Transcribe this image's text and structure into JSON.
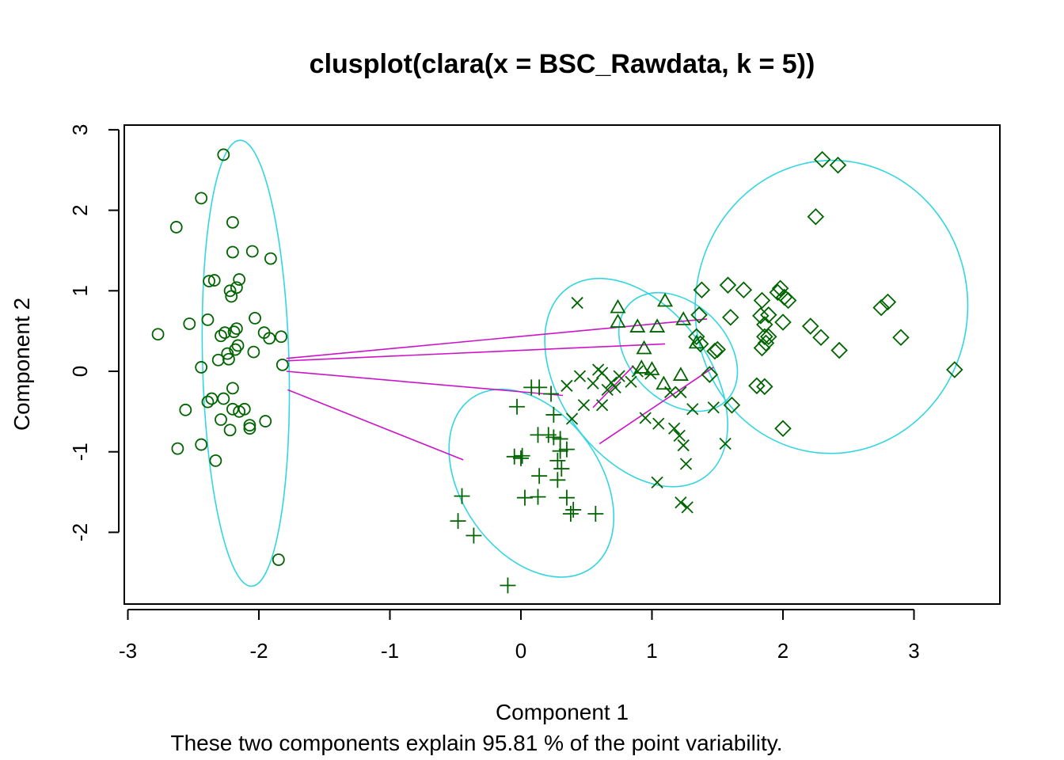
{
  "chart_data": {
    "type": "scatter",
    "title": "clusplot(clara(x = BSC_Rawdata, k = 5))",
    "xlabel": "Component 1",
    "ylabel": "Component 2",
    "subtitle": "These two components explain 95.81 % of the point variability.",
    "xlim": [
      -3,
      3.5
    ],
    "ylim": [
      -2.85,
      3
    ],
    "xticks": [
      "-3",
      "-2",
      "-1",
      "0",
      "1",
      "2",
      "3"
    ],
    "yticks": [
      "-2",
      "-1",
      "0",
      "1",
      "2",
      "3"
    ],
    "point_color": "#006400",
    "ellipse_color": "#33D6E0",
    "line_color": "#CC14C7",
    "clusters": [
      {
        "marker": "circle",
        "points": [
          [
            -2.27,
            2.69
          ],
          [
            -2.44,
            2.15
          ],
          [
            -2.63,
            1.79
          ],
          [
            -2.2,
            1.85
          ],
          [
            -2.2,
            1.48
          ],
          [
            -2.05,
            1.49
          ],
          [
            -1.91,
            1.4
          ],
          [
            -2.38,
            1.12
          ],
          [
            -2.34,
            1.13
          ],
          [
            -2.15,
            1.14
          ],
          [
            -2.22,
            1.0
          ],
          [
            -2.17,
            1.04
          ],
          [
            -2.21,
            0.93
          ],
          [
            -2.39,
            0.64
          ],
          [
            -2.53,
            0.59
          ],
          [
            -2.03,
            0.66
          ],
          [
            -2.77,
            0.46
          ],
          [
            -2.26,
            0.48
          ],
          [
            -2.19,
            0.49
          ],
          [
            -2.17,
            0.53
          ],
          [
            -2.29,
            0.44
          ],
          [
            -1.96,
            0.48
          ],
          [
            -1.92,
            0.41
          ],
          [
            -1.83,
            0.43
          ],
          [
            -2.16,
            0.32
          ],
          [
            -2.18,
            0.27
          ],
          [
            -2.24,
            0.22
          ],
          [
            -2.04,
            0.24
          ],
          [
            -2.23,
            0.15
          ],
          [
            -2.31,
            0.14
          ],
          [
            -2.44,
            0.05
          ],
          [
            -1.82,
            0.08
          ],
          [
            -2.2,
            -0.21
          ],
          [
            -2.36,
            -0.34
          ],
          [
            -2.39,
            -0.38
          ],
          [
            -2.27,
            -0.34
          ],
          [
            -2.2,
            -0.47
          ],
          [
            -2.15,
            -0.5
          ],
          [
            -2.11,
            -0.47
          ],
          [
            -2.56,
            -0.48
          ],
          [
            -2.29,
            -0.6
          ],
          [
            -1.95,
            -0.62
          ],
          [
            -2.07,
            -0.67
          ],
          [
            -2.07,
            -0.71
          ],
          [
            -2.22,
            -0.73
          ],
          [
            -2.44,
            -0.91
          ],
          [
            -2.62,
            -0.96
          ],
          [
            -2.33,
            -1.11
          ],
          [
            -1.85,
            -2.34
          ]
        ],
        "ellipse": {
          "cx": -2.1,
          "cy": 0.1,
          "rx": 0.33,
          "ry": 2.77,
          "angle_deg": -1.5
        }
      },
      {
        "marker": "plus",
        "points": [
          [
            0.08,
            -0.2
          ],
          [
            0.14,
            -0.2
          ],
          [
            0.23,
            -0.28
          ],
          [
            -0.03,
            -0.44
          ],
          [
            0.25,
            -0.54
          ],
          [
            0.13,
            -0.79
          ],
          [
            0.21,
            -0.79
          ],
          [
            0.25,
            -0.82
          ],
          [
            0.3,
            -0.84
          ],
          [
            0.35,
            -0.97
          ],
          [
            0.3,
            -0.99
          ],
          [
            -0.05,
            -1.06
          ],
          [
            0.01,
            -1.05
          ],
          [
            0.0,
            -1.08
          ],
          [
            0.28,
            -1.11
          ],
          [
            0.31,
            -1.21
          ],
          [
            0.14,
            -1.3
          ],
          [
            0.28,
            -1.35
          ],
          [
            -0.45,
            -1.55
          ],
          [
            0.03,
            -1.57
          ],
          [
            0.13,
            -1.56
          ],
          [
            0.35,
            -1.57
          ],
          [
            0.4,
            -1.72
          ],
          [
            0.38,
            -1.77
          ],
          [
            0.57,
            -1.77
          ],
          [
            -0.48,
            -1.86
          ],
          [
            -0.36,
            -2.04
          ],
          [
            -0.1,
            -2.66
          ]
        ],
        "ellipse": {
          "cx": 0.08,
          "cy": -1.39,
          "rx": 0.53,
          "ry": 1.29,
          "angle_deg": -35
        }
      },
      {
        "marker": "cross",
        "points": [
          [
            0.43,
            0.85
          ],
          [
            0.59,
            0.02
          ],
          [
            0.62,
            -0.02
          ],
          [
            0.45,
            -0.06
          ],
          [
            0.75,
            -0.06
          ],
          [
            0.35,
            -0.18
          ],
          [
            0.55,
            -0.15
          ],
          [
            0.69,
            -0.14
          ],
          [
            0.66,
            -0.23
          ],
          [
            0.72,
            -0.2
          ],
          [
            0.84,
            -0.13
          ],
          [
            0.89,
            0.0
          ],
          [
            0.99,
            -0.03
          ],
          [
            1.14,
            -0.26
          ],
          [
            1.22,
            -0.26
          ],
          [
            0.48,
            -0.42
          ],
          [
            0.62,
            -0.42
          ],
          [
            0.39,
            -0.59
          ],
          [
            0.95,
            -0.58
          ],
          [
            1.05,
            -0.65
          ],
          [
            1.17,
            -0.71
          ],
          [
            1.21,
            -0.8
          ],
          [
            1.24,
            -0.92
          ],
          [
            1.31,
            -0.47
          ],
          [
            1.47,
            -0.45
          ],
          [
            1.56,
            -0.9
          ],
          [
            1.26,
            -1.15
          ],
          [
            1.04,
            -1.38
          ],
          [
            1.22,
            -1.63
          ],
          [
            1.27,
            -1.69
          ]
        ],
        "ellipse": {
          "cx": 0.88,
          "cy": -0.14,
          "rx": 0.57,
          "ry": 1.45,
          "angle_deg": -36
        }
      },
      {
        "marker": "triangle",
        "points": [
          [
            0.74,
            0.79
          ],
          [
            1.1,
            0.87
          ],
          [
            0.74,
            0.61
          ],
          [
            0.89,
            0.55
          ],
          [
            1.04,
            0.55
          ],
          [
            1.24,
            0.64
          ],
          [
            0.94,
            0.28
          ],
          [
            1.34,
            0.35
          ],
          [
            0.92,
            0.04
          ],
          [
            1.22,
            -0.05
          ],
          [
            1.0,
            0.02
          ],
          [
            1.09,
            -0.16
          ]
        ],
        "ellipse": {
          "cx": 1.2,
          "cy": 0.24,
          "rx": 0.37,
          "ry": 0.85,
          "angle_deg": -45
        }
      },
      {
        "marker": "diamond",
        "points": [
          [
            2.3,
            2.63
          ],
          [
            2.42,
            2.56
          ],
          [
            2.25,
            1.92
          ],
          [
            1.38,
            1.01
          ],
          [
            1.58,
            1.07
          ],
          [
            1.7,
            1.01
          ],
          [
            1.98,
            1.03
          ],
          [
            1.96,
            0.98
          ],
          [
            2.01,
            0.92
          ],
          [
            2.04,
            0.88
          ],
          [
            1.84,
            0.88
          ],
          [
            1.36,
            0.7
          ],
          [
            1.6,
            0.67
          ],
          [
            1.83,
            0.69
          ],
          [
            1.89,
            0.7
          ],
          [
            2.0,
            0.61
          ],
          [
            1.86,
            0.58
          ],
          [
            1.86,
            0.43
          ],
          [
            1.89,
            0.43
          ],
          [
            1.87,
            0.35
          ],
          [
            1.84,
            0.29
          ],
          [
            2.21,
            0.56
          ],
          [
            2.29,
            0.42
          ],
          [
            2.43,
            0.26
          ],
          [
            1.34,
            0.43
          ],
          [
            1.37,
            0.34
          ],
          [
            1.48,
            0.25
          ],
          [
            1.5,
            0.27
          ],
          [
            2.75,
            0.79
          ],
          [
            2.8,
            0.86
          ],
          [
            2.9,
            0.42
          ],
          [
            3.31,
            0.02
          ],
          [
            1.44,
            -0.04
          ],
          [
            1.8,
            -0.18
          ],
          [
            1.86,
            -0.19
          ],
          [
            1.61,
            -0.42
          ],
          [
            2.0,
            -0.71
          ]
        ],
        "ellipse": {
          "cx": 2.37,
          "cy": 0.8,
          "rx": 1.04,
          "ry": 1.82,
          "angle_deg": 3
        }
      }
    ],
    "links": [
      [
        -1.79,
        0.16,
        1.42,
        0.65
      ],
      [
        -1.79,
        0.13,
        1.1,
        0.34
      ],
      [
        -1.79,
        0.0,
        0.32,
        -0.3
      ],
      [
        -1.78,
        -0.23,
        -0.44,
        -1.1
      ],
      [
        0.55,
        -0.45,
        0.86,
        0.07
      ],
      [
        0.6,
        -0.9,
        1.47,
        0.05
      ]
    ]
  }
}
